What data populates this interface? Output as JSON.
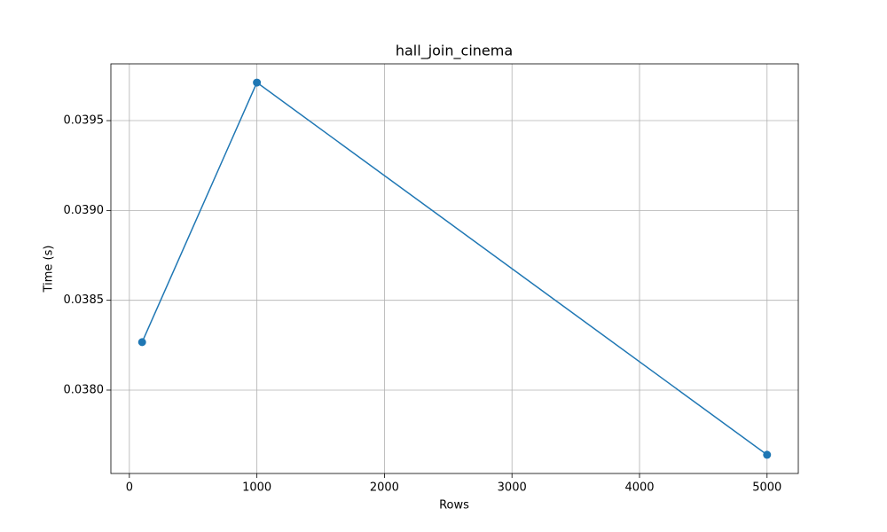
{
  "chart_data": {
    "type": "line",
    "title": "hall_join_cinema",
    "x_label": "Rows",
    "y_label": "Time (s)",
    "x": [
      100,
      1000,
      5000
    ],
    "values": [
      0.038267,
      0.039712,
      0.03764
    ],
    "color": "#1f77b4",
    "xlim": [
      -145,
      5245
    ],
    "xticks": [
      0,
      1000,
      2000,
      3000,
      4000,
      5000
    ],
    "ylim": [
      0.037536,
      0.039816
    ],
    "yticks": [
      {
        "value": 0.038,
        "label": "0.0380"
      },
      0.0385,
      {
        "value": 0.039,
        "label": "0.0390"
      },
      0.0395
    ],
    "grid": true,
    "markers": true
  }
}
